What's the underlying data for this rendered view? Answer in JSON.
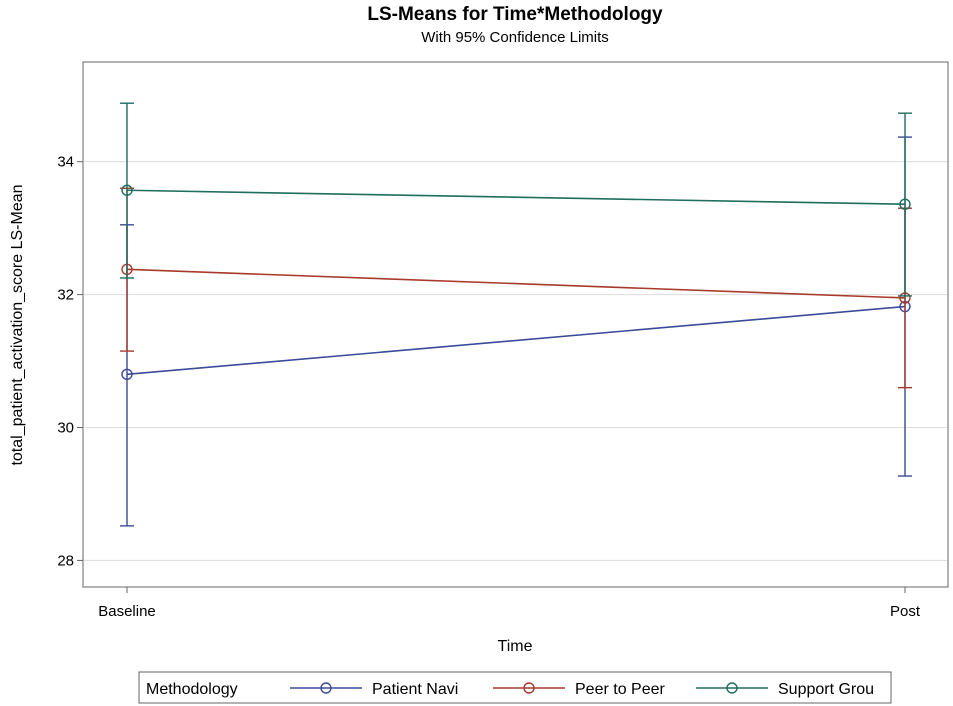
{
  "chart_data": {
    "type": "line",
    "title": "LS-Means for Time*Methodology",
    "subtitle": "With 95% Confidence Limits",
    "xlabel": "Time",
    "ylabel": "total_patient_activation_score LS-Mean",
    "categories": [
      "Baseline",
      "Post"
    ],
    "ylim": [
      27.6,
      35.5
    ],
    "yticks": [
      28,
      30,
      32,
      34
    ],
    "grid": true,
    "legend": {
      "title": "Methodology",
      "placement": "bottom"
    },
    "series": [
      {
        "name": "Patient Navi",
        "color": "#3b4a9a",
        "values": [
          30.8,
          31.82
        ],
        "lower": [
          28.52,
          29.27
        ],
        "upper": [
          33.05,
          34.37
        ]
      },
      {
        "name": "Peer to Peer",
        "color": "#a83a2a",
        "values": [
          32.38,
          31.95
        ],
        "lower": [
          31.15,
          30.6
        ],
        "upper": [
          33.6,
          33.3
        ]
      },
      {
        "name": "Support Grou",
        "color": "#1f6e5e",
        "values": [
          33.57,
          33.36
        ],
        "lower": [
          32.25,
          31.98
        ],
        "upper": [
          34.88,
          34.73
        ]
      }
    ]
  }
}
